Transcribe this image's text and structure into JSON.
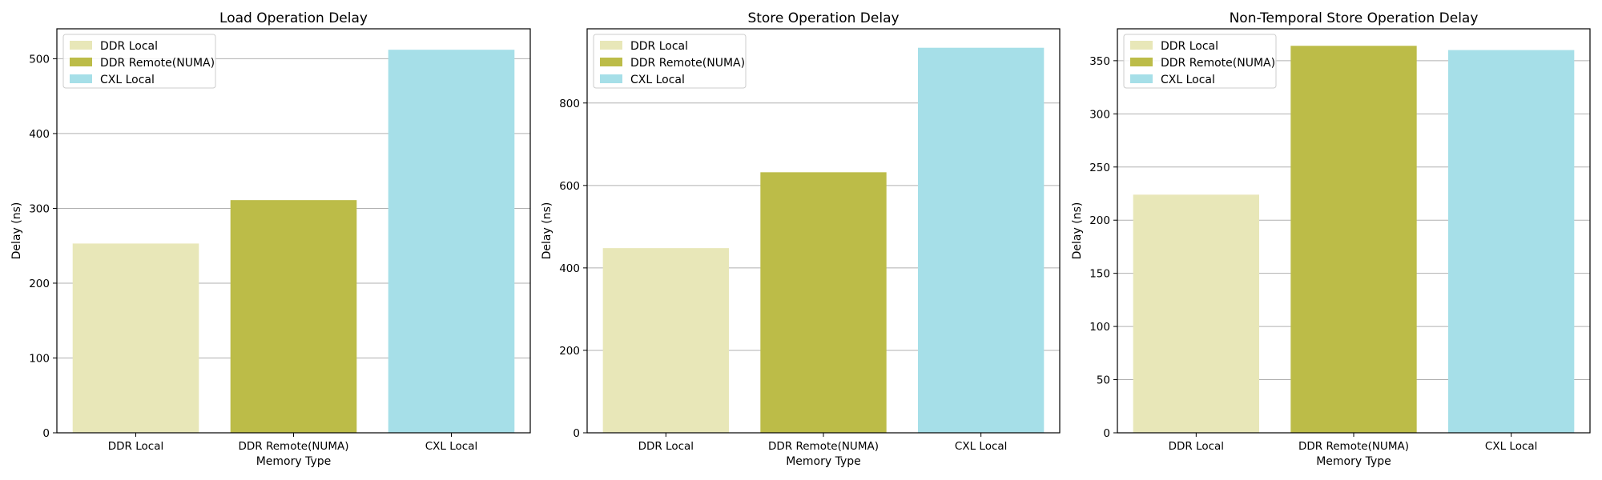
{
  "chart_data": [
    {
      "type": "bar",
      "title": "Load Operation Delay",
      "xlabel": "Memory Type",
      "ylabel": "Delay (ns)",
      "categories": [
        "DDR Local",
        "DDR Remote(NUMA)",
        "CXL Local"
      ],
      "values": [
        253,
        311,
        512
      ],
      "colors": [
        "#e8e7b8",
        "#bcbc48",
        "#a6dfe8"
      ],
      "ylim": [
        0,
        540
      ],
      "yticks": [
        0,
        100,
        200,
        300,
        400,
        500
      ],
      "grid": "y",
      "legend": "top-left"
    },
    {
      "type": "bar",
      "title": "Store Operation Delay",
      "xlabel": "Memory Type",
      "ylabel": "Delay (ns)",
      "categories": [
        "DDR Local",
        "DDR Remote(NUMA)",
        "CXL Local"
      ],
      "values": [
        448,
        632,
        934
      ],
      "colors": [
        "#e8e7b8",
        "#bcbc48",
        "#a6dfe8"
      ],
      "ylim": [
        0,
        980
      ],
      "yticks": [
        0,
        200,
        400,
        600,
        800
      ],
      "grid": "y",
      "legend": "top-left"
    },
    {
      "type": "bar",
      "title": "Non-Temporal Store Operation Delay",
      "xlabel": "Memory Type",
      "ylabel": "Delay (ns)",
      "categories": [
        "DDR Local",
        "DDR Remote(NUMA)",
        "CXL Local"
      ],
      "values": [
        224,
        364,
        360
      ],
      "colors": [
        "#e8e7b8",
        "#bcbc48",
        "#a6dfe8"
      ],
      "ylim": [
        0,
        380
      ],
      "yticks": [
        0,
        50,
        100,
        150,
        200,
        250,
        300,
        350
      ],
      "grid": "y",
      "legend": "top-left"
    }
  ]
}
